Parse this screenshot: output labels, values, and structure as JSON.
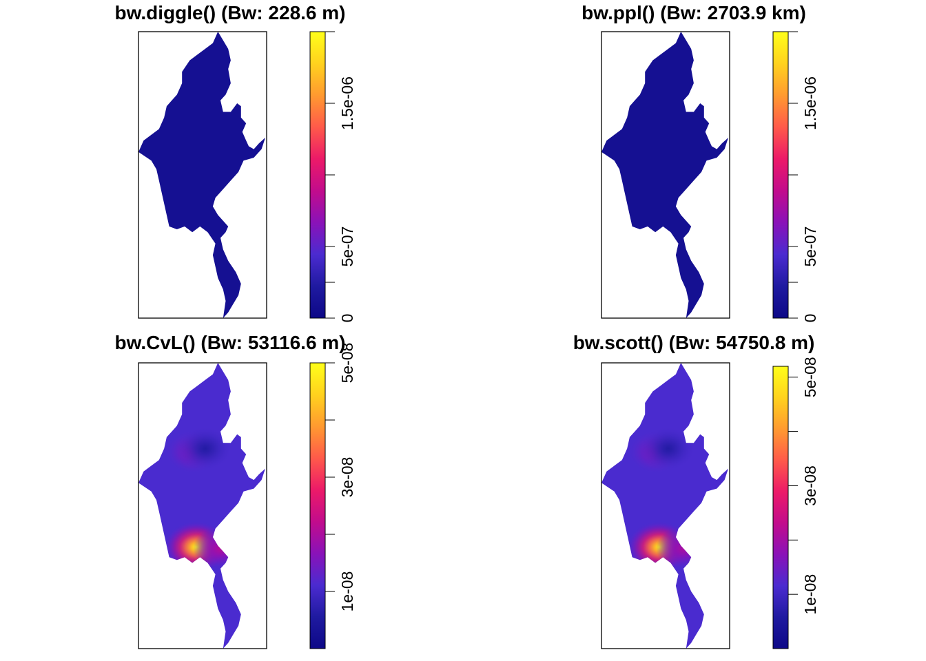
{
  "figure": {
    "layout": "2x2 grid of kernel density raster maps with colour-bar legends",
    "background": "#ffffff"
  },
  "colormap": {
    "name": "plasma-like",
    "stops": [
      "#0d0887",
      "#1f1aa0",
      "#4b2bd0",
      "#8a12b8",
      "#c20c8c",
      "#ec1a68",
      "#ff5a4a",
      "#ff9a30",
      "#ffd21e",
      "#ffff1a"
    ]
  },
  "chart_data": [
    {
      "type": "heatmap",
      "title": "bw.diggle() (Bw: 228.6 m)",
      "bandwidth_label": "Bw: 228.6 m",
      "legend": {
        "range": [
          0,
          2e-06
        ],
        "ticks": [
          {
            "value": 0,
            "label": "0"
          },
          {
            "value": 2.5e-07,
            "label": ""
          },
          {
            "value": 5e-07,
            "label": "5e-07"
          },
          {
            "value": 1e-06,
            "label": ""
          },
          {
            "value": 1.5e-06,
            "label": "1.5e-06"
          },
          {
            "value": 2e-06,
            "label": ""
          }
        ]
      },
      "surface": {
        "background_level": 0.05,
        "hotspots": []
      }
    },
    {
      "type": "heatmap",
      "title": "bw.ppl() (Bw: 2703.9 km)",
      "bandwidth_label": "Bw: 2703.9 km",
      "legend": {
        "range": [
          0,
          2e-06
        ],
        "ticks": [
          {
            "value": 0,
            "label": "0"
          },
          {
            "value": 2.5e-07,
            "label": ""
          },
          {
            "value": 5e-07,
            "label": "5e-07"
          },
          {
            "value": 1e-06,
            "label": ""
          },
          {
            "value": 1.5e-06,
            "label": "1.5e-06"
          },
          {
            "value": 2e-06,
            "label": ""
          }
        ]
      },
      "surface": {
        "background_level": 0.05,
        "hotspots": []
      }
    },
    {
      "type": "heatmap",
      "title": "bw.CvL() (Bw: 53116.6 m)",
      "bandwidth_label": "Bw: 53116.6 m",
      "legend": {
        "range": [
          0,
          5e-08
        ],
        "ticks": [
          {
            "value": 1e-08,
            "label": "1e-08"
          },
          {
            "value": 2e-08,
            "label": ""
          },
          {
            "value": 3e-08,
            "label": "3e-08"
          },
          {
            "value": 4e-08,
            "label": ""
          },
          {
            "value": 5e-08,
            "label": "5e-08"
          }
        ]
      },
      "surface": {
        "background_level": 0.22,
        "hotspots": [
          {
            "x": 0.42,
            "y": 0.312,
            "intensity": 0.34
          },
          {
            "x": 0.52,
            "y": 0.3,
            "intensity": 0.12
          },
          {
            "x": 0.45,
            "y": 0.645,
            "intensity": 0.98
          },
          {
            "x": 0.64,
            "y": 0.65,
            "intensity": 0.42
          }
        ]
      }
    },
    {
      "type": "heatmap",
      "title": "bw.scott() (Bw: 54750.8 m)",
      "bandwidth_label": "Bw: 54750.8 m",
      "legend": {
        "range": [
          0,
          5.2e-08
        ],
        "ticks": [
          {
            "value": 1e-08,
            "label": "1e-08"
          },
          {
            "value": 2e-08,
            "label": ""
          },
          {
            "value": 3e-08,
            "label": "3e-08"
          },
          {
            "value": 4e-08,
            "label": ""
          },
          {
            "value": 5e-08,
            "label": "5e-08"
          }
        ]
      },
      "surface": {
        "background_level": 0.22,
        "hotspots": [
          {
            "x": 0.42,
            "y": 0.312,
            "intensity": 0.34
          },
          {
            "x": 0.52,
            "y": 0.3,
            "intensity": 0.12
          },
          {
            "x": 0.45,
            "y": 0.645,
            "intensity": 0.96
          },
          {
            "x": 0.64,
            "y": 0.65,
            "intensity": 0.4
          }
        ]
      }
    }
  ]
}
